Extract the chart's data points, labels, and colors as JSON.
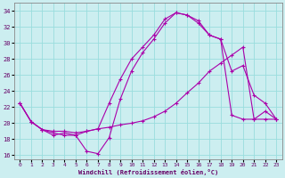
{
  "xlabel": "Windchill (Refroidissement éolien,°C)",
  "bg_color": "#cceef0",
  "grid_color": "#99dddd",
  "line_color": "#aa00aa",
  "x_ticks": [
    0,
    1,
    2,
    3,
    4,
    5,
    6,
    7,
    8,
    9,
    10,
    11,
    12,
    13,
    14,
    15,
    16,
    17,
    18,
    19,
    20,
    21,
    22,
    23
  ],
  "y_ticks": [
    16,
    18,
    20,
    22,
    24,
    26,
    28,
    30,
    32,
    34
  ],
  "ylim": [
    15.5,
    35.0
  ],
  "xlim": [
    -0.5,
    23.5
  ],
  "line1_y": [
    22.5,
    20.2,
    19.2,
    19.0,
    19.0,
    18.8,
    19.0,
    19.3,
    19.5,
    19.8,
    20.0,
    20.3,
    20.8,
    21.5,
    22.5,
    23.8,
    25.0,
    26.5,
    27.5,
    28.5,
    29.5,
    20.5,
    20.5,
    20.5
  ],
  "line2_y": [
    22.5,
    20.2,
    19.2,
    18.8,
    18.5,
    18.5,
    19.0,
    19.3,
    22.5,
    25.5,
    28.0,
    29.5,
    31.0,
    33.0,
    33.8,
    33.5,
    32.5,
    31.0,
    30.5,
    26.5,
    27.2,
    23.5,
    22.5,
    20.5
  ],
  "line3_y": [
    22.5,
    20.2,
    19.2,
    18.5,
    18.8,
    18.5,
    16.5,
    16.2,
    18.2,
    23.0,
    26.5,
    28.8,
    30.5,
    32.5,
    33.8,
    33.5,
    32.8,
    31.0,
    30.5,
    21.0,
    20.5,
    20.5,
    21.5,
    20.5
  ]
}
